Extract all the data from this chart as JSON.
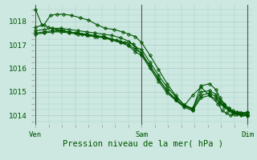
{
  "title": "Pression niveau de la mer( hPa )",
  "background_color": "#cce8e0",
  "grid_color": "#aacccc",
  "line_color": "#005500",
  "marker_color": "#005500",
  "ylim": [
    1013.6,
    1018.7
  ],
  "yticks": [
    1014,
    1015,
    1016,
    1017,
    1018
  ],
  "xtick_labels": [
    "Ven",
    "Sam",
    "Dim"
  ],
  "xtick_positions": [
    0.0,
    0.5,
    1.0
  ],
  "xlim": [
    -0.01,
    1.02
  ],
  "series": [
    [
      0.0,
      1018.5,
      0.03,
      1017.85,
      0.06,
      1017.75,
      0.1,
      1017.65,
      0.13,
      1017.6,
      0.16,
      1017.55,
      0.19,
      1017.5,
      0.22,
      1017.45,
      0.25,
      1017.4,
      0.29,
      1017.35,
      0.33,
      1017.3,
      0.38,
      1017.2,
      0.42,
      1017.1,
      0.46,
      1017.05,
      0.5,
      1016.6,
      0.54,
      1016.1,
      0.58,
      1015.55,
      0.62,
      1015.05,
      0.66,
      1014.65,
      0.7,
      1014.4,
      0.74,
      1014.85,
      0.78,
      1015.2,
      0.82,
      1014.85,
      0.86,
      1014.5,
      0.88,
      1014.2,
      0.9,
      1014.1,
      0.92,
      1014.0,
      0.94,
      1014.05,
      0.96,
      1014.1,
      0.98,
      1014.05,
      1.0,
      1014.0
    ],
    [
      0.0,
      1017.75,
      0.04,
      1017.85,
      0.07,
      1018.25,
      0.1,
      1018.3,
      0.13,
      1018.3,
      0.17,
      1018.25,
      0.21,
      1018.15,
      0.25,
      1018.05,
      0.29,
      1017.85,
      0.33,
      1017.7,
      0.37,
      1017.65,
      0.41,
      1017.55,
      0.44,
      1017.45,
      0.47,
      1017.35,
      0.5,
      1017.1,
      0.54,
      1016.55,
      0.58,
      1015.95,
      0.62,
      1015.35,
      0.66,
      1014.85,
      0.7,
      1014.45,
      0.74,
      1014.25,
      0.78,
      1015.25,
      0.82,
      1015.35,
      0.85,
      1015.1,
      0.87,
      1014.75,
      0.89,
      1014.5,
      0.91,
      1014.3,
      0.93,
      1014.15,
      0.95,
      1014.1,
      0.97,
      1014.1,
      1.0,
      1014.1
    ],
    [
      0.0,
      1017.6,
      0.04,
      1017.65,
      0.08,
      1017.7,
      0.12,
      1017.7,
      0.16,
      1017.65,
      0.2,
      1017.6,
      0.24,
      1017.55,
      0.28,
      1017.5,
      0.32,
      1017.45,
      0.36,
      1017.4,
      0.4,
      1017.3,
      0.44,
      1017.15,
      0.47,
      1016.9,
      0.5,
      1016.8,
      0.54,
      1016.25,
      0.58,
      1015.7,
      0.62,
      1015.2,
      0.66,
      1014.8,
      0.7,
      1014.45,
      0.74,
      1014.3,
      0.78,
      1015.0,
      0.82,
      1015.05,
      0.85,
      1014.9,
      0.87,
      1014.65,
      0.89,
      1014.45,
      0.91,
      1014.3,
      0.93,
      1014.2,
      0.95,
      1014.15,
      0.97,
      1014.1,
      1.0,
      1014.15
    ],
    [
      0.0,
      1017.5,
      0.04,
      1017.55,
      0.08,
      1017.6,
      0.12,
      1017.6,
      0.16,
      1017.55,
      0.2,
      1017.5,
      0.24,
      1017.45,
      0.28,
      1017.4,
      0.32,
      1017.35,
      0.36,
      1017.25,
      0.4,
      1017.15,
      0.44,
      1017.0,
      0.47,
      1016.8,
      0.5,
      1016.65,
      0.54,
      1016.1,
      0.58,
      1015.55,
      0.62,
      1015.05,
      0.66,
      1014.7,
      0.7,
      1014.4,
      0.74,
      1014.25,
      0.78,
      1014.85,
      0.82,
      1014.95,
      0.85,
      1014.8,
      0.87,
      1014.55,
      0.89,
      1014.4,
      0.91,
      1014.25,
      0.93,
      1014.15,
      0.95,
      1014.1,
      0.97,
      1014.05,
      1.0,
      1014.05
    ],
    [
      0.0,
      1017.45,
      0.04,
      1017.5,
      0.08,
      1017.55,
      0.12,
      1017.55,
      0.16,
      1017.5,
      0.2,
      1017.45,
      0.24,
      1017.4,
      0.28,
      1017.35,
      0.32,
      1017.3,
      0.36,
      1017.2,
      0.4,
      1017.1,
      0.44,
      1016.95,
      0.47,
      1016.7,
      0.5,
      1016.55,
      0.54,
      1016.0,
      0.58,
      1015.45,
      0.62,
      1014.95,
      0.66,
      1014.65,
      0.7,
      1014.35,
      0.74,
      1014.2,
      0.78,
      1014.75,
      0.82,
      1014.85,
      0.85,
      1014.7,
      0.87,
      1014.5,
      0.89,
      1014.35,
      0.91,
      1014.2,
      0.93,
      1014.1,
      0.95,
      1014.05,
      0.97,
      1014.0,
      1.0,
      1013.98
    ]
  ],
  "vlines": [
    0.0,
    0.5,
    1.0
  ],
  "vline_color": "#555555",
  "marker_size": 2.0,
  "line_width": 0.8
}
